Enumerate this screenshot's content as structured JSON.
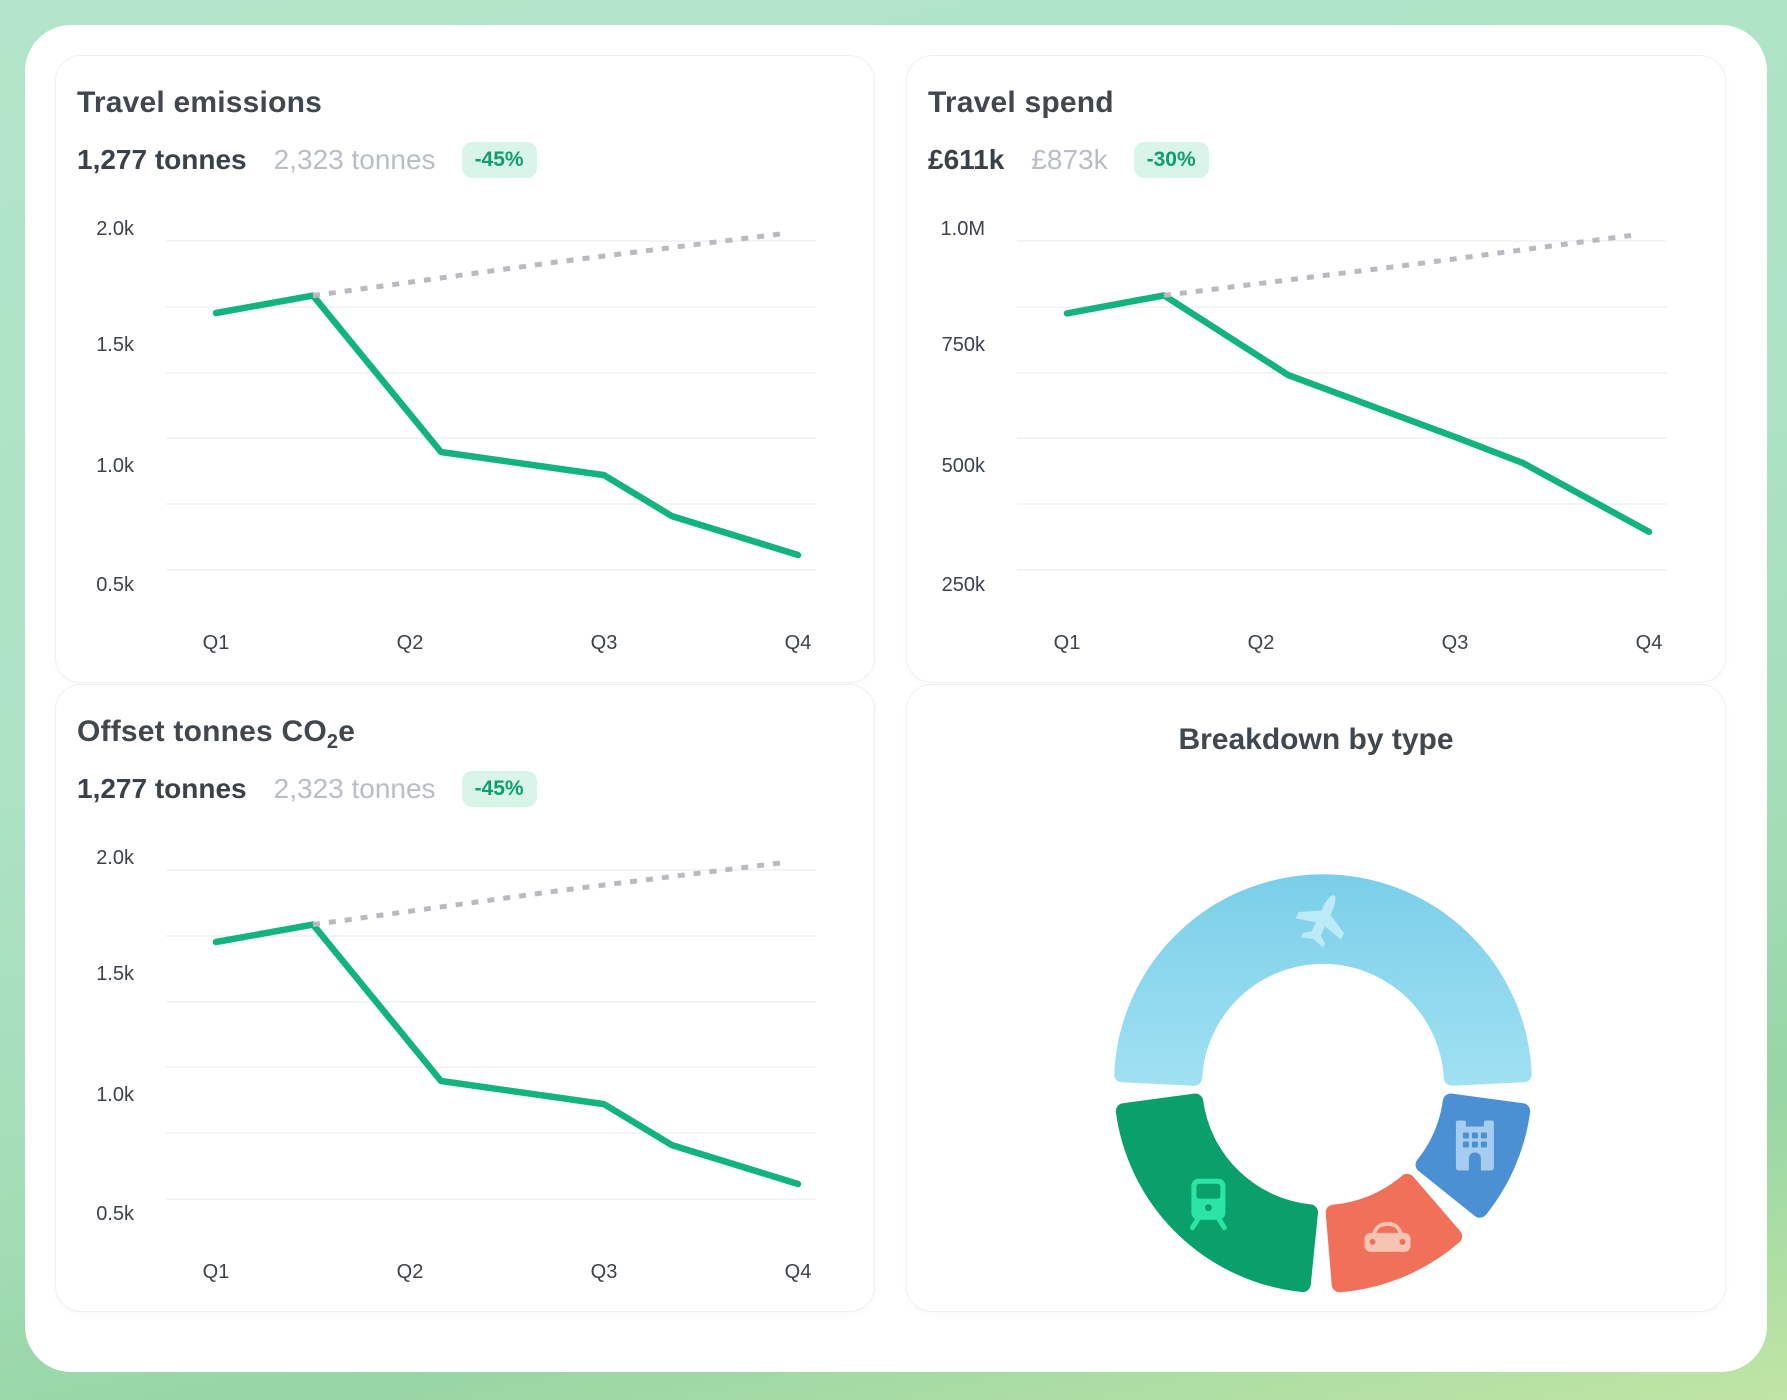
{
  "page": {
    "background_top_color": "#b2e5c9",
    "background_bottom_color": "#c0e5a4",
    "surface_color": "#ffffff",
    "accent_green": "#12b37e",
    "badge_text_color": "#0c9e6e",
    "badge_bg_color": "#d9f4e8",
    "text_dark": "#3a4149",
    "text_gray": "#b9bec4",
    "gridline_color": "#f0f0f3"
  },
  "cards": {
    "travel_emissions": {
      "title": "Travel emissions",
      "primary_value": "1,277 tonnes",
      "secondary_value": "2,323 tonnes",
      "change_badge": "-45%"
    },
    "travel_spend": {
      "title": "Travel spend",
      "primary_value": "£611k",
      "secondary_value": "£873k",
      "change_badge": "-30%"
    },
    "offset_tonnes": {
      "title_prefix": "Offset tonnes CO",
      "title_sub": "2",
      "title_suffix": "e",
      "primary_value": "1,277 tonnes",
      "secondary_value": "2,323 tonnes",
      "change_badge": "-45%"
    },
    "breakdown": {
      "title": "Breakdown by type"
    }
  },
  "chart_data": [
    {
      "id": "travel_emissions",
      "type": "line",
      "title": "Travel emissions",
      "x_labels": [
        "Q1",
        "Q2",
        "Q3",
        "Q4"
      ],
      "y_ticks": [
        "2.0k",
        "1.5k",
        "1.0k",
        "0.5k"
      ],
      "y_scale": {
        "v_top": 2000,
        "v_bottom": 500
      },
      "ylim": [
        350,
        2100
      ],
      "grid": "horizontal-only",
      "legend": "none",
      "series": [
        {
          "name": "actual",
          "style": "solid",
          "color": "#12b37e",
          "x_quarters": [
            1.0,
            1.5,
            2.16,
            3.0,
            3.35,
            4.0
          ],
          "values": [
            1642,
            1715,
            1056,
            959,
            786,
            622
          ],
          "quarter_values": {
            "Q1": 1642,
            "Q2": 1221,
            "Q3": 959,
            "Q4": 622
          }
        },
        {
          "name": "prior-trend",
          "style": "dashed",
          "color": "#b9b9c0",
          "x_quarters": [
            1.5,
            2.74,
            3.91
          ],
          "values": [
            1715,
            1855,
            1975
          ]
        }
      ]
    },
    {
      "id": "travel_spend",
      "type": "line",
      "title": "Travel spend",
      "x_labels": [
        "Q1",
        "Q2",
        "Q3",
        "Q4"
      ],
      "y_ticks": [
        "1.0M",
        "750k",
        "500k",
        "250k"
      ],
      "y_scale": {
        "v_top": 1000,
        "v_bottom": 250
      },
      "ylim": [
        175,
        1050
      ],
      "unit": "thousands GBP",
      "grid": "horizontal-only",
      "legend": "none",
      "series": [
        {
          "name": "actual",
          "style": "solid",
          "color": "#12b37e",
          "x_quarters": [
            1.0,
            1.5,
            2.14,
            3.0,
            3.35,
            4.0
          ],
          "values": [
            820,
            858,
            690,
            560,
            505,
            360
          ],
          "quarter_values": {
            "Q1": 820,
            "Q2": 702,
            "Q3": 560,
            "Q4": 360
          }
        },
        {
          "name": "prior-trend",
          "style": "dashed",
          "color": "#b9b9c0",
          "x_quarters": [
            1.5,
            2.76,
            3.92
          ],
          "values": [
            858,
            922,
            985
          ]
        }
      ]
    },
    {
      "id": "offset_tonnes",
      "type": "line",
      "title": "Offset tonnes CO2e",
      "x_labels": [
        "Q1",
        "Q2",
        "Q3",
        "Q4"
      ],
      "y_ticks": [
        "2.0k",
        "1.5k",
        "1.0k",
        "0.5k"
      ],
      "y_scale": {
        "v_top": 2000,
        "v_bottom": 500
      },
      "ylim": [
        350,
        2100
      ],
      "grid": "horizontal-only",
      "legend": "none",
      "series": [
        {
          "name": "actual",
          "style": "solid",
          "color": "#12b37e",
          "x_quarters": [
            1.0,
            1.5,
            2.16,
            3.0,
            3.35,
            4.0
          ],
          "values": [
            1642,
            1715,
            1056,
            959,
            786,
            622
          ],
          "quarter_values": {
            "Q1": 1642,
            "Q2": 1221,
            "Q3": 959,
            "Q4": 622
          }
        },
        {
          "name": "prior-trend",
          "style": "dashed",
          "color": "#b9b9c0",
          "x_quarters": [
            1.5,
            2.74,
            3.91
          ],
          "values": [
            1715,
            1855,
            1975
          ]
        }
      ]
    },
    {
      "id": "breakdown",
      "type": "donut",
      "title": "Breakdown by type",
      "legend": "icons-in-segments",
      "segments": [
        {
          "label": "flights",
          "icon": "plane-icon",
          "share_pct_est": 50,
          "start_deg": 180,
          "end_deg": 0,
          "icon_angle_deg": 90,
          "icon_rotate_deg": 25,
          "color": "#7ccfe9",
          "color_light": "#9fe0f2",
          "icon_color": "#bdeaf7"
        },
        {
          "label": "hotels",
          "icon": "building-icon",
          "share_pct_est": 10,
          "start_deg": -5,
          "end_deg": -41.5,
          "icon_angle_deg": -23,
          "color": "#4a90d2",
          "icon_color": "#a6cdf0"
        },
        {
          "label": "car",
          "icon": "car-icon",
          "share_pct_est": 12,
          "start_deg": -46.5,
          "end_deg": -88,
          "icon_angle_deg": -67,
          "color": "#f0705a",
          "icon_color": "#f7c3b2"
        },
        {
          "label": "rail",
          "icon": "train-icon",
          "share_pct_est": 23,
          "start_deg": -93,
          "end_deg": -175,
          "icon_angle_deg": -134,
          "color": "#0aa06b",
          "icon_color": "#2ce4a5"
        }
      ]
    }
  ]
}
